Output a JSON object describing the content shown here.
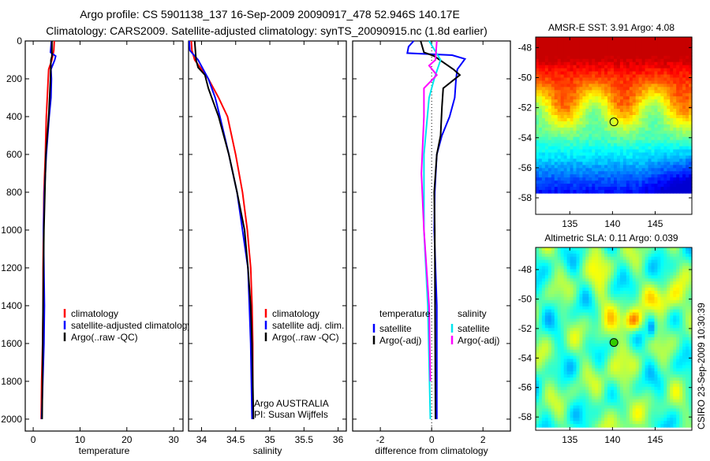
{
  "title_lines": [
    "Argo profile: CS 5901138_137 16-Sep-2009 20090917_478 52.946S 140.17E",
    "Climatology: CARS2009. Satellite-adjusted climatology: synTS_20090915.nc (1.8d earlier)"
  ],
  "timestamp": "CSIRO 23-Sep-2009 10:30:39",
  "colors": {
    "red": "#ff0000",
    "blue": "#0000ff",
    "black": "#000000",
    "cyan": "#00e5ee",
    "magenta": "#ff00ff"
  },
  "chart_data": [
    {
      "type": "line",
      "id": "temperature",
      "xlabel": "temperature",
      "ylabel": "",
      "xlim": [
        -1.7,
        32
      ],
      "ylim": [
        2063,
        0
      ],
      "xticks": [
        0,
        10,
        20,
        30
      ],
      "yticks": [
        0,
        200,
        400,
        600,
        800,
        1000,
        1200,
        1400,
        1600,
        1800,
        2000
      ],
      "legend": {
        "placement": "lower-left",
        "entries": [
          "climatology",
          "satellite-adjusted climatology",
          "Argo(..raw -QC)"
        ]
      },
      "series": [
        {
          "name": "climatology",
          "color": "#ff0000",
          "depth": [
            0,
            50,
            100,
            150,
            200,
            300,
            400,
            600,
            800,
            1000,
            1200,
            1400,
            1600,
            1800,
            2000
          ],
          "values": [
            4.5,
            4.4,
            4.0,
            3.3,
            3.2,
            3.0,
            2.8,
            2.6,
            2.3,
            2.2,
            2.1,
            2.1,
            2.0,
            1.8,
            1.7
          ]
        },
        {
          "name": "satellite-adjusted climatology",
          "color": "#0000ff",
          "depth": [
            0,
            60,
            80,
            100,
            150,
            200,
            300,
            400,
            600,
            800,
            1000,
            1400,
            1600,
            2000
          ],
          "values": [
            3.9,
            3.7,
            4.8,
            4.6,
            3.8,
            3.9,
            3.8,
            3.4,
            2.8,
            2.4,
            2.2,
            2.4,
            2.3,
            1.8
          ]
        },
        {
          "name": "Argo(..raw -QC)",
          "color": "#000000",
          "depth": [
            0,
            80,
            100,
            200,
            300,
            400,
            500,
            600,
            800,
            1000,
            1400,
            2000
          ],
          "values": [
            4.0,
            4.0,
            3.8,
            3.7,
            3.5,
            3.3,
            3.0,
            2.7,
            2.5,
            2.3,
            2.1,
            1.9
          ]
        }
      ]
    },
    {
      "type": "line",
      "id": "salinity",
      "xlabel": "salinity",
      "xlim": [
        33.81,
        36.12
      ],
      "ylim": [
        2063,
        0
      ],
      "xticks": [
        34,
        34.5,
        35,
        35.5,
        36
      ],
      "xticklabels": [
        "34",
        "34.5",
        "35",
        "35.5",
        "36"
      ],
      "yticks": [
        0,
        200,
        400,
        600,
        800,
        1000,
        1200,
        1400,
        1600,
        1800,
        2000
      ],
      "legend": {
        "placement": "lower-right",
        "entries": [
          "climatology",
          "satellite adj. clim.",
          "Argo(..raw -QC)"
        ]
      },
      "annotation": [
        "Argo AUSTRALIA",
        "PI: Susan Wijffels"
      ],
      "series": [
        {
          "name": "climatology",
          "color": "#ff0000",
          "depth": [
            0,
            50,
            100,
            150,
            200,
            300,
            400,
            600,
            800,
            1000,
            1200,
            1400,
            1600,
            2000
          ],
          "values": [
            33.85,
            33.86,
            33.9,
            34.0,
            34.1,
            34.25,
            34.38,
            34.5,
            34.6,
            34.67,
            34.72,
            34.74,
            34.75,
            34.75
          ]
        },
        {
          "name": "satellite adj. clim.",
          "color": "#0000ff",
          "depth": [
            0,
            50,
            100,
            200,
            300,
            400,
            600,
            800,
            1000,
            1200,
            1400,
            1600,
            2000
          ],
          "values": [
            33.82,
            33.83,
            33.95,
            34.1,
            34.2,
            34.27,
            34.4,
            34.52,
            34.6,
            34.68,
            34.7,
            34.72,
            34.74
          ]
        },
        {
          "name": "Argo(..raw -QC)",
          "color": "#000000",
          "depth": [
            0,
            100,
            140,
            180,
            250,
            300,
            400,
            600,
            800,
            1000,
            1200,
            1400,
            1600,
            2000
          ],
          "values": [
            33.9,
            33.92,
            33.95,
            34.05,
            34.1,
            34.15,
            34.25,
            34.4,
            34.52,
            34.63,
            34.68,
            34.72,
            34.74,
            34.76
          ]
        }
      ]
    },
    {
      "type": "line",
      "id": "difference",
      "xlabel": "difference from climatology",
      "xlim": [
        -3.08,
        3.07
      ],
      "ylim": [
        2063,
        0
      ],
      "xticks": [
        -2,
        0,
        2
      ],
      "yticks": [
        0,
        200,
        400,
        600,
        800,
        1000,
        1200,
        1400,
        1600,
        1800,
        2000
      ],
      "legend": {
        "placement": "lower-center",
        "headers": [
          "temperature",
          "salinity"
        ],
        "entries": [
          "satellite",
          "Argo(-adj)",
          "satellite",
          "Argo(-adj)"
        ]
      },
      "series": [
        {
          "name": "temperature satellite",
          "color": "#0000ff",
          "depth": [
            0,
            30,
            64,
            75,
            95,
            150,
            200,
            300,
            400,
            500,
            600,
            800,
            1000,
            1400,
            2000
          ],
          "values": [
            -0.7,
            -0.9,
            -0.95,
            0.8,
            1.3,
            1.0,
            0.95,
            0.9,
            0.7,
            0.4,
            0.2,
            0.12,
            0.1,
            0.2,
            0.2
          ]
        },
        {
          "name": "temperature Argo(-adj)",
          "color": "#000000",
          "depth": [
            0,
            60,
            80,
            150,
            180,
            250,
            350,
            500,
            600,
            800,
            1000,
            2000
          ],
          "values": [
            -0.43,
            -0.3,
            0.1,
            0.85,
            1.1,
            0.45,
            0.4,
            0.35,
            0.2,
            0.1,
            0.12,
            0.15
          ]
        },
        {
          "name": "salinity satellite",
          "color": "#00e5ee",
          "depth": [
            0,
            100,
            200,
            300,
            600,
            1000,
            1400,
            2000
          ],
          "values": [
            -0.1,
            0.35,
            0.1,
            -0.1,
            -0.3,
            -0.3,
            -0.15,
            -0.05
          ]
        },
        {
          "name": "salinity Argo(-adj)",
          "color": "#ff00ff",
          "depth": [
            0,
            100,
            130,
            180,
            250,
            400,
            700,
            1000,
            1400,
            1800
          ],
          "values": [
            0.2,
            0.15,
            -0.1,
            0.2,
            -0.3,
            -0.3,
            -0.4,
            -0.3,
            -0.1,
            -0.05
          ]
        }
      ]
    },
    {
      "type": "heatmap",
      "id": "sst",
      "title": "AMSR-E SST: 3.91 Argo: 4.08",
      "xlim": [
        131,
        149.3
      ],
      "ylim": [
        -47.3,
        -59.1
      ],
      "xticks": [
        135,
        140,
        145
      ],
      "yticks": [
        -48,
        -50,
        -52,
        -54,
        -56,
        -58
      ],
      "marker": {
        "lon": 140.17,
        "lat": -52.946
      }
    },
    {
      "type": "heatmap",
      "id": "sla",
      "title": "Altimetric SLA: 0.11 Argo: 0.039",
      "xlim": [
        131,
        149.3
      ],
      "ylim": [
        -46.5,
        -58.9
      ],
      "xticks": [
        135,
        140,
        145
      ],
      "yticks": [
        -48,
        -50,
        -52,
        -54,
        -56,
        -58
      ],
      "marker": {
        "lon": 140.17,
        "lat": -52.946
      }
    }
  ]
}
